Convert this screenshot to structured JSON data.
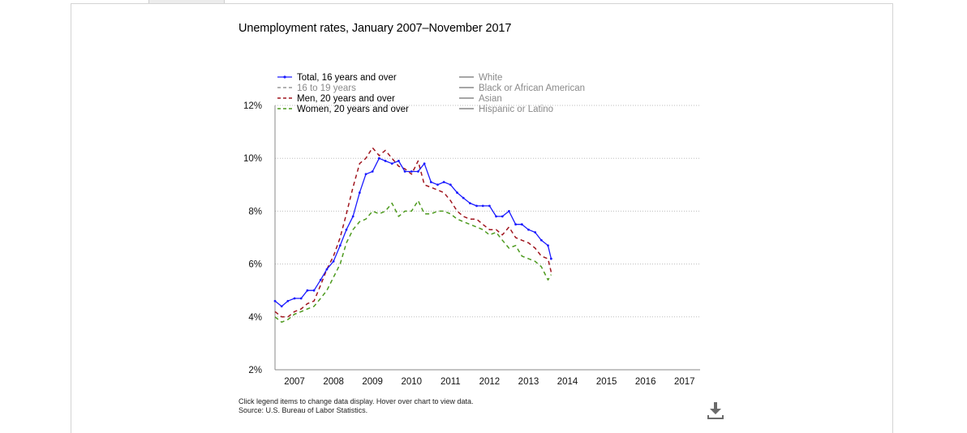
{
  "title": "Unemployment rates, January 2007–November 2017",
  "footnote": {
    "line1": "Click legend items to change data display. Hover over chart to view data.",
    "line2": "Source: U.S. Bureau of Labor Statistics."
  },
  "colors": {
    "total": "#1a1aff",
    "teens": "#999999",
    "men": "#a0151e",
    "women": "#4d9a1e",
    "inactive": "#888888",
    "grid": "#bdbdbd",
    "axis": "#888888"
  },
  "icons": {
    "download": "download-icon"
  },
  "chart_data": {
    "type": "line",
    "title": "Unemployment rates, January 2007–November 2017",
    "x_ticks": [
      "2007",
      "2008",
      "2009",
      "2010",
      "2011",
      "2012",
      "2013",
      "2014",
      "2015",
      "2016",
      "2017"
    ],
    "y_ticks": [
      "2%",
      "4%",
      "6%",
      "8%",
      "10%",
      "12%"
    ],
    "xlim": [
      2007.0,
      2017.9
    ],
    "ylim": [
      2,
      12
    ],
    "grid": "horizontal dotted",
    "legend": {
      "placement": "top",
      "items": [
        {
          "label": "Total, 16 years and over",
          "style": "solid-markers",
          "color": "#1a1aff",
          "active": true
        },
        {
          "label": "16 to 19 years",
          "style": "dashed",
          "color": "#999999",
          "active": false
        },
        {
          "label": "Men, 20 years and over",
          "style": "dashed",
          "color": "#a0151e",
          "active": true
        },
        {
          "label": "Women, 20 years and over",
          "style": "dashed",
          "color": "#4d9a1e",
          "active": true
        },
        {
          "label": "White",
          "style": "solid",
          "color": "#888888",
          "active": false
        },
        {
          "label": "Black or African American",
          "style": "solid",
          "color": "#888888",
          "active": false
        },
        {
          "label": "Asian",
          "style": "solid",
          "color": "#888888",
          "active": false
        },
        {
          "label": "Hispanic or Latino",
          "style": "solid",
          "color": "#888888",
          "active": false
        }
      ]
    },
    "series": [
      {
        "name": "Total, 16 years and over",
        "x": [
          2007.0,
          2007.17,
          2007.33,
          2007.5,
          2007.67,
          2007.83,
          2008.0,
          2008.17,
          2008.33,
          2008.5,
          2008.67,
          2008.83,
          2009.0,
          2009.17,
          2009.33,
          2009.5,
          2009.67,
          2009.83,
          2010.0,
          2010.17,
          2010.33,
          2010.5,
          2010.67,
          2010.83,
          2011.0,
          2011.17,
          2011.33,
          2011.5,
          2011.67,
          2011.83,
          2012.0,
          2012.17,
          2012.33,
          2012.5,
          2012.67,
          2012.83,
          2013.0,
          2013.17,
          2013.33,
          2013.5,
          2013.67,
          2013.83,
          2014.0,
          2014.08
        ],
        "values": [
          4.6,
          4.4,
          4.6,
          4.7,
          4.7,
          5.0,
          5.0,
          5.4,
          5.8,
          6.1,
          6.7,
          7.3,
          7.8,
          8.7,
          9.4,
          9.5,
          10.0,
          9.9,
          9.8,
          9.9,
          9.5,
          9.5,
          9.5,
          9.8,
          9.1,
          9.0,
          9.1,
          9.0,
          8.7,
          8.5,
          8.3,
          8.2,
          8.2,
          8.2,
          7.8,
          7.8,
          8.0,
          7.5,
          7.5,
          7.3,
          7.2,
          6.9,
          6.7,
          6.2
        ],
        "color": "#1a1aff"
      },
      {
        "name": "Men, 20 years and over",
        "x": [
          2007.0,
          2007.17,
          2007.33,
          2007.5,
          2007.67,
          2007.83,
          2008.0,
          2008.17,
          2008.33,
          2008.5,
          2008.67,
          2008.83,
          2009.0,
          2009.17,
          2009.33,
          2009.5,
          2009.67,
          2009.83,
          2010.0,
          2010.17,
          2010.33,
          2010.5,
          2010.67,
          2010.83,
          2011.0,
          2011.17,
          2011.33,
          2011.5,
          2011.67,
          2011.83,
          2012.0,
          2012.17,
          2012.33,
          2012.5,
          2012.67,
          2012.83,
          2013.0,
          2013.17,
          2013.33,
          2013.5,
          2013.67,
          2013.83,
          2014.0,
          2014.08
        ],
        "values": [
          4.2,
          4.0,
          4.0,
          4.2,
          4.3,
          4.5,
          4.6,
          5.2,
          5.8,
          6.3,
          7.0,
          7.9,
          8.9,
          9.8,
          10.0,
          10.4,
          10.1,
          10.3,
          10.0,
          9.7,
          9.6,
          9.4,
          9.9,
          9.0,
          8.9,
          8.8,
          8.7,
          8.4,
          8.0,
          7.8,
          7.7,
          7.7,
          7.5,
          7.3,
          7.3,
          7.1,
          7.4,
          7.0,
          6.9,
          6.8,
          6.6,
          6.3,
          6.2,
          5.7
        ],
        "color": "#a0151e"
      },
      {
        "name": "Women, 20 years and over",
        "x": [
          2007.0,
          2007.17,
          2007.33,
          2007.5,
          2007.67,
          2007.83,
          2008.0,
          2008.17,
          2008.33,
          2008.5,
          2008.67,
          2008.83,
          2009.0,
          2009.17,
          2009.33,
          2009.5,
          2009.67,
          2009.83,
          2010.0,
          2010.17,
          2010.33,
          2010.5,
          2010.67,
          2010.83,
          2011.0,
          2011.17,
          2011.33,
          2011.5,
          2011.67,
          2011.83,
          2012.0,
          2012.17,
          2012.33,
          2012.5,
          2012.67,
          2012.83,
          2013.0,
          2013.17,
          2013.33,
          2013.5,
          2013.67,
          2013.83,
          2014.0,
          2014.08
        ],
        "values": [
          4.0,
          3.8,
          3.9,
          4.1,
          4.2,
          4.3,
          4.4,
          4.7,
          5.0,
          5.5,
          6.0,
          6.8,
          7.3,
          7.6,
          7.7,
          8.0,
          7.9,
          8.0,
          8.3,
          7.8,
          8.0,
          8.0,
          8.4,
          7.9,
          7.9,
          8.0,
          8.0,
          7.9,
          7.7,
          7.6,
          7.5,
          7.4,
          7.3,
          7.1,
          7.2,
          6.9,
          6.6,
          6.7,
          6.3,
          6.2,
          6.1,
          5.9,
          5.4,
          5.6
        ],
        "color": "#4d9a1e"
      }
    ]
  }
}
